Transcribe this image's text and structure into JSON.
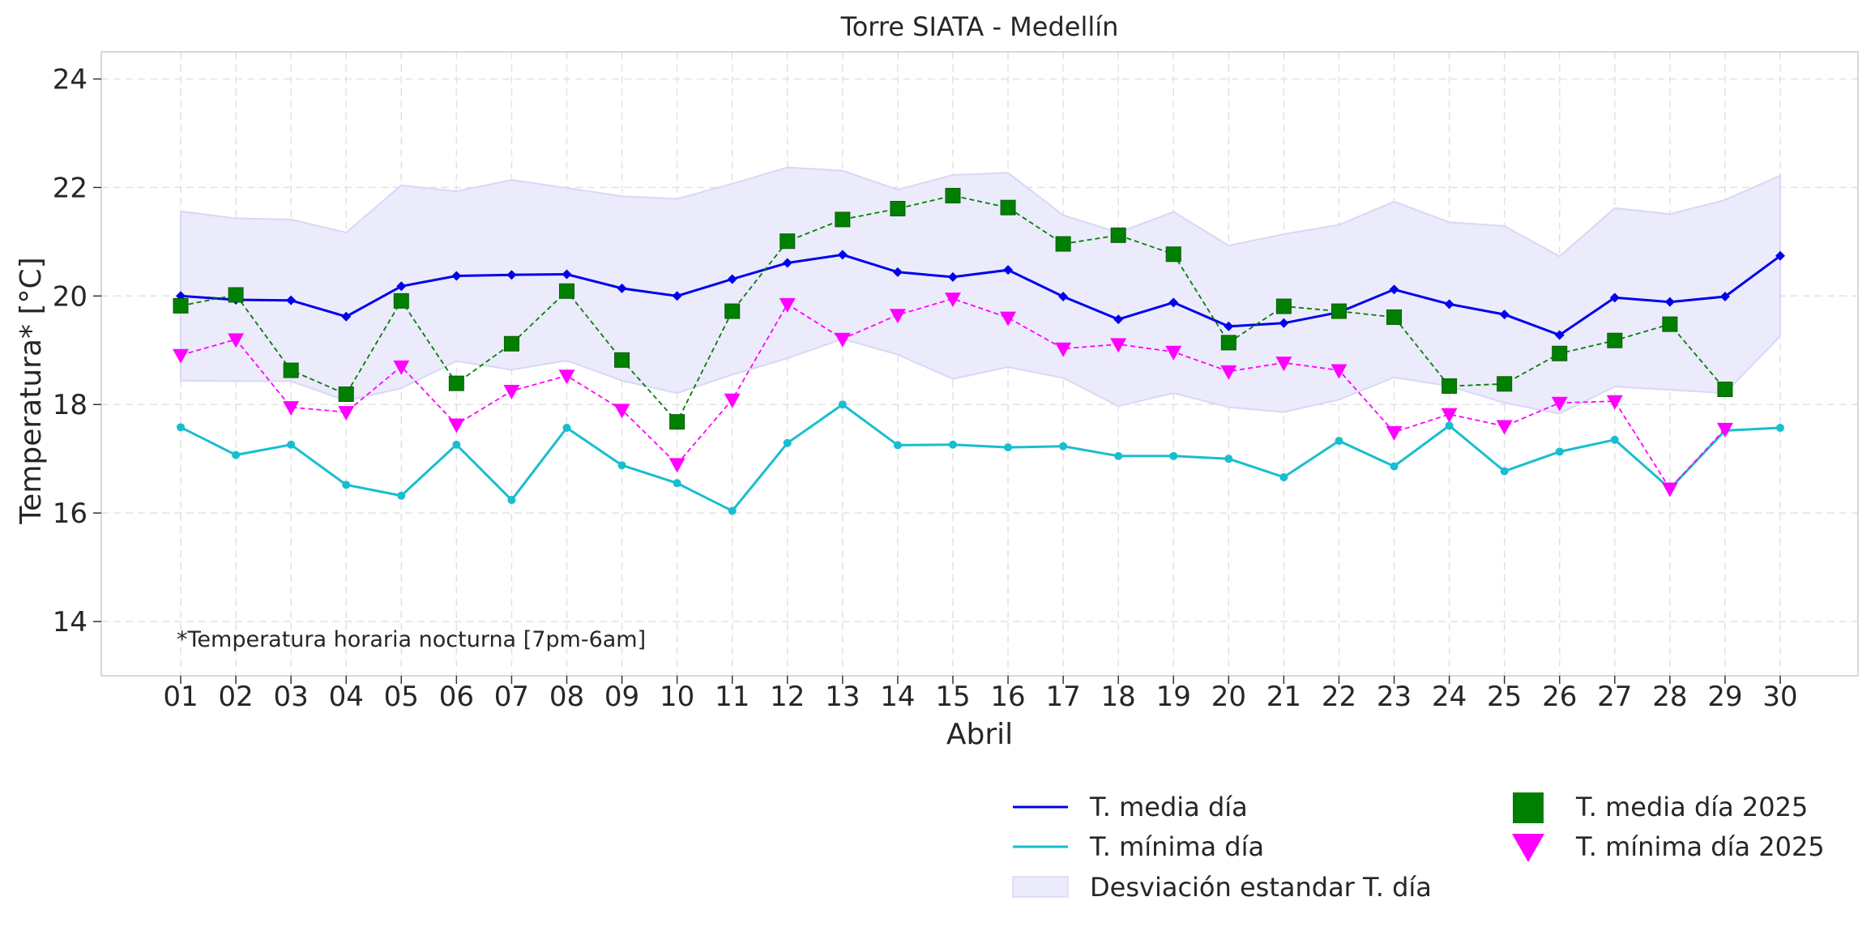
{
  "chart_data": {
    "type": "line",
    "title": "Torre SIATA - Medellín",
    "xlabel": "Abril",
    "ylabel": "Temperatura* [°C]",
    "annotation": "*Temperatura horaria nocturna [7pm-6am]",
    "ylim": [
      13,
      24.5
    ],
    "yticks": [
      14,
      16,
      18,
      20,
      22,
      24
    ],
    "grid": true,
    "legend_position": "bottom-right",
    "categories": [
      "01",
      "02",
      "03",
      "04",
      "05",
      "06",
      "07",
      "08",
      "09",
      "10",
      "11",
      "12",
      "13",
      "14",
      "15",
      "16",
      "17",
      "18",
      "19",
      "20",
      "21",
      "22",
      "23",
      "24",
      "25",
      "26",
      "27",
      "28",
      "29",
      "30"
    ],
    "series": [
      {
        "name": "T. media día",
        "style": "line-diamond",
        "color": "#0000ee",
        "values": [
          20.0,
          19.93,
          19.92,
          19.62,
          20.18,
          20.37,
          20.39,
          20.4,
          20.14,
          20.0,
          20.31,
          20.61,
          20.76,
          20.44,
          20.35,
          20.48,
          19.99,
          19.57,
          19.88,
          19.44,
          19.5,
          19.7,
          20.12,
          19.85,
          19.66,
          19.28,
          19.97,
          19.89,
          19.99,
          20.74
        ]
      },
      {
        "name": "T. mínima día",
        "style": "line-dot",
        "color": "#17becf",
        "values": [
          17.58,
          17.07,
          17.26,
          16.52,
          16.32,
          17.26,
          16.24,
          17.57,
          16.88,
          16.55,
          16.04,
          17.29,
          18.0,
          17.25,
          17.26,
          17.21,
          17.23,
          17.05,
          17.05,
          17.0,
          16.66,
          17.33,
          16.86,
          17.61,
          16.77,
          17.13,
          17.35,
          16.45,
          17.52,
          17.57
        ]
      },
      {
        "name": "Desviación estandar T. día",
        "style": "band",
        "color": "#ebebfc",
        "upper": [
          21.56,
          21.43,
          21.41,
          21.17,
          22.04,
          21.93,
          22.14,
          21.99,
          21.84,
          21.79,
          22.07,
          22.37,
          22.31,
          21.96,
          22.23,
          22.27,
          21.49,
          21.17,
          21.55,
          20.93,
          21.14,
          21.31,
          21.74,
          21.36,
          21.29,
          20.73,
          21.62,
          21.51,
          21.77,
          22.22
        ],
        "lower": [
          18.44,
          18.43,
          18.43,
          18.07,
          18.3,
          18.8,
          18.64,
          18.81,
          18.44,
          18.21,
          18.55,
          18.85,
          19.21,
          18.92,
          18.47,
          18.69,
          18.49,
          17.97,
          18.21,
          17.95,
          17.86,
          18.09,
          18.5,
          18.34,
          18.03,
          17.83,
          18.33,
          18.27,
          18.21,
          19.26
        ]
      },
      {
        "name": "T. media día 2025",
        "style": "square-dashed",
        "color": "#008000",
        "values": [
          19.82,
          20.02,
          18.63,
          18.19,
          19.91,
          18.39,
          19.12,
          20.09,
          18.82,
          17.68,
          19.72,
          21.01,
          21.41,
          21.61,
          21.85,
          21.63,
          20.96,
          21.12,
          20.77,
          19.14,
          19.81,
          19.72,
          19.61,
          18.34,
          18.38,
          18.94,
          19.18,
          19.48,
          18.28,
          null
        ]
      },
      {
        "name": "T. mínima día 2025",
        "style": "triangle-dashed",
        "color": "#ff00ff",
        "values": [
          18.91,
          19.2,
          17.95,
          17.86,
          18.7,
          17.63,
          18.25,
          18.53,
          17.9,
          16.9,
          18.09,
          19.85,
          19.21,
          19.65,
          19.95,
          19.6,
          19.03,
          19.11,
          18.97,
          18.61,
          18.77,
          18.63,
          17.49,
          17.82,
          17.6,
          18.03,
          18.06,
          16.45,
          17.55,
          null
        ]
      }
    ]
  }
}
